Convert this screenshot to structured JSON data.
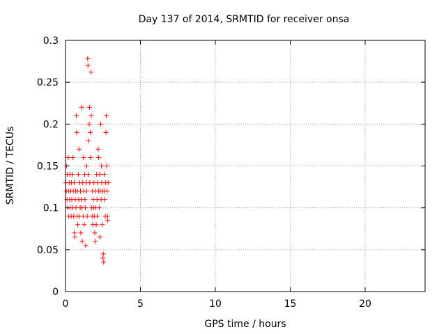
{
  "chart_data": {
    "type": "scatter",
    "title": "Day 137 of 2014, SRMTID for receiver onsa",
    "xlabel": "GPS time / hours",
    "ylabel": "SRMTID / TECUs",
    "xlim": [
      0,
      24
    ],
    "ylim": [
      0,
      0.3
    ],
    "xticks": [
      0,
      5,
      10,
      15,
      20
    ],
    "xtick_labels": [
      "0",
      "5",
      "10",
      "15",
      "20"
    ],
    "yticks": [
      0,
      0.05,
      0.1,
      0.15,
      0.2,
      0.25,
      0.3
    ],
    "ytick_labels": [
      "0",
      "0.05",
      "0.1",
      "0.15",
      "0.2",
      "0.25",
      "0.3"
    ],
    "grid": true,
    "marker": "+",
    "color": "#ff0000",
    "series": [
      {
        "name": "SRMTID",
        "points": [
          [
            0.02,
            0.13
          ],
          [
            0.05,
            0.12
          ],
          [
            0.08,
            0.15
          ],
          [
            0.1,
            0.11
          ],
          [
            0.12,
            0.14
          ],
          [
            0.15,
            0.1
          ],
          [
            0.18,
            0.16
          ],
          [
            0.2,
            0.12
          ],
          [
            0.22,
            0.09
          ],
          [
            0.25,
            0.13
          ],
          [
            0.28,
            0.11
          ],
          [
            0.3,
            0.14
          ],
          [
            0.32,
            0.1
          ],
          [
            0.35,
            0.12
          ],
          [
            0.38,
            0.09
          ],
          [
            0.4,
            0.13
          ],
          [
            0.42,
            0.11
          ],
          [
            0.45,
            0.14
          ],
          [
            0.48,
            0.1
          ],
          [
            0.5,
            0.16
          ],
          [
            0.52,
            0.12
          ],
          [
            0.55,
            0.09
          ],
          [
            0.58,
            0.13
          ],
          [
            0.6,
            0.07
          ],
          [
            0.62,
            0.065
          ],
          [
            0.65,
            0.11
          ],
          [
            0.68,
            0.12
          ],
          [
            0.7,
            0.1
          ],
          [
            0.72,
            0.21
          ],
          [
            0.75,
            0.19
          ],
          [
            0.78,
            0.09
          ],
          [
            0.8,
            0.12
          ],
          [
            0.82,
            0.08
          ],
          [
            0.85,
            0.14
          ],
          [
            0.88,
            0.11
          ],
          [
            0.9,
            0.17
          ],
          [
            0.92,
            0.09
          ],
          [
            0.95,
            0.13
          ],
          [
            0.98,
            0.1
          ],
          [
            1.0,
            0.12
          ],
          [
            1.02,
            0.07
          ],
          [
            1.05,
            0.11
          ],
          [
            1.08,
            0.22
          ],
          [
            1.1,
            0.1
          ],
          [
            1.12,
            0.06
          ],
          [
            1.15,
            0.13
          ],
          [
            1.18,
            0.09
          ],
          [
            1.2,
            0.16
          ],
          [
            1.22,
            0.12
          ],
          [
            1.25,
            0.08
          ],
          [
            1.28,
            0.14
          ],
          [
            1.3,
            0.11
          ],
          [
            1.32,
            0.1
          ],
          [
            1.35,
            0.055
          ],
          [
            1.38,
            0.13
          ],
          [
            1.4,
            0.15
          ],
          [
            1.42,
            0.12
          ],
          [
            1.45,
            0.09
          ],
          [
            1.48,
            0.278
          ],
          [
            1.5,
            0.27
          ],
          [
            1.52,
            0.14
          ],
          [
            1.55,
            0.18
          ],
          [
            1.58,
            0.2
          ],
          [
            1.6,
            0.22
          ],
          [
            1.62,
            0.13
          ],
          [
            1.65,
            0.19
          ],
          [
            1.68,
            0.16
          ],
          [
            1.7,
            0.262
          ],
          [
            1.72,
            0.21
          ],
          [
            1.75,
            0.1
          ],
          [
            1.78,
            0.09
          ],
          [
            1.8,
            0.12
          ],
          [
            1.82,
            0.08
          ],
          [
            1.85,
            0.11
          ],
          [
            1.88,
            0.1
          ],
          [
            1.9,
            0.13
          ],
          [
            1.92,
            0.09
          ],
          [
            1.95,
            0.07
          ],
          [
            1.98,
            0.06
          ],
          [
            2.0,
            0.12
          ],
          [
            2.02,
            0.1
          ],
          [
            2.05,
            0.08
          ],
          [
            2.08,
            0.14
          ],
          [
            2.1,
            0.11
          ],
          [
            2.12,
            0.09
          ],
          [
            2.15,
            0.13
          ],
          [
            2.18,
            0.17
          ],
          [
            2.2,
            0.12
          ],
          [
            2.22,
            0.16
          ],
          [
            2.25,
            0.1
          ],
          [
            2.28,
            0.14
          ],
          [
            2.3,
            0.065
          ],
          [
            2.32,
            0.12
          ],
          [
            2.35,
            0.2
          ],
          [
            2.38,
            0.11
          ],
          [
            2.4,
            0.15
          ],
          [
            2.42,
            0.13
          ],
          [
            2.45,
            0.08
          ],
          [
            2.48,
            0.12
          ],
          [
            2.5,
            0.04
          ],
          [
            2.52,
            0.045
          ],
          [
            2.55,
            0.035
          ],
          [
            2.58,
            0.12
          ],
          [
            2.6,
            0.14
          ],
          [
            2.62,
            0.11
          ],
          [
            2.65,
            0.09
          ],
          [
            2.68,
            0.13
          ],
          [
            2.7,
            0.19
          ],
          [
            2.72,
            0.21
          ],
          [
            2.75,
            0.15
          ],
          [
            2.78,
            0.12
          ],
          [
            2.8,
            0.09
          ],
          [
            2.82,
            0.085
          ],
          [
            2.85,
            0.13
          ]
        ]
      }
    ]
  }
}
